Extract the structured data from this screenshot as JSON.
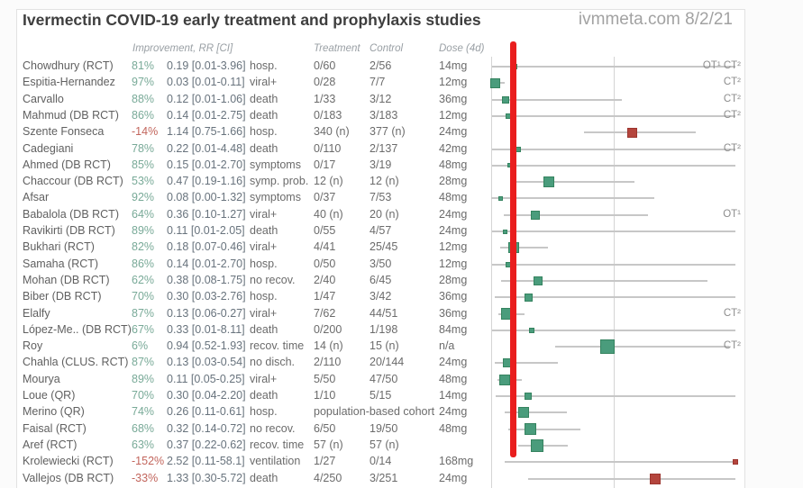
{
  "header": {
    "title": "Ivermectin COVID-19 early treatment and prophylaxis studies",
    "source": "ivmmeta.com 8/2/21"
  },
  "columns": {
    "improvement": "Improvement, RR [CI]",
    "treatment": "Treatment",
    "control": "Control",
    "dose": "Dose (4d)"
  },
  "accent_colors": {
    "positive_green": "#4a9c7c",
    "negative_red": "#b4453d",
    "red_marker_line": "#e91e1e",
    "ci_line_gray": "#c7c7c7"
  },
  "chart_data": {
    "type": "scatter",
    "subtype": "forest-plot",
    "x_axis": {
      "scale": "linear",
      "unit": "relative risk (RR)",
      "origin_rr": 0,
      "reference_line_rr": 1,
      "clip_max_rr": 1.98,
      "grid": "vertical lines at RR 0 and RR 1"
    },
    "legend_position": "none",
    "red_vertical_line": {
      "meaning": "overlaid marker line near pooled effect",
      "rr": 0.16
    },
    "rows": [
      {
        "name": "Chowdhury (RCT)",
        "improvement": "81%",
        "rr_ci": "0.19 [0.01-3.96]",
        "rr": 0.19,
        "ci": [
          0.01,
          3.96
        ],
        "outcome": "hosp.",
        "treatment": "0/60",
        "control": "2/56",
        "dose": "14mg",
        "color": "green",
        "weight": 6,
        "annotation": "OT¹ CT²"
      },
      {
        "name": "Espitia-Hernandez",
        "improvement": "97%",
        "rr_ci": "0.03 [0.01-0.11]",
        "rr": 0.03,
        "ci": [
          0.01,
          0.11
        ],
        "outcome": "viral+",
        "treatment": "0/28",
        "control": "7/7",
        "dose": "12mg",
        "color": "green",
        "weight": 11,
        "annotation": "CT²"
      },
      {
        "name": "Carvallo",
        "improvement": "88%",
        "rr_ci": "0.12 [0.01-1.06]",
        "rr": 0.12,
        "ci": [
          0.01,
          1.06
        ],
        "outcome": "death",
        "treatment": "1/33",
        "control": "3/12",
        "dose": "36mg",
        "color": "green",
        "weight": 8,
        "annotation": "CT²"
      },
      {
        "name": "Mahmud (DB RCT)",
        "improvement": "86%",
        "rr_ci": "0.14 [0.01-2.75]",
        "rr": 0.14,
        "ci": [
          0.01,
          2.75
        ],
        "outcome": "death",
        "treatment": "0/183",
        "control": "3/183",
        "dose": "12mg",
        "color": "green",
        "weight": 6,
        "annotation": "CT²"
      },
      {
        "name": "Szente Fonseca",
        "improvement": "-14%",
        "rr_ci": "1.14 [0.75-1.66]",
        "rr": 1.14,
        "ci": [
          0.75,
          1.66
        ],
        "outcome": "hosp.",
        "treatment": "340 (n)",
        "control": "377 (n)",
        "dose": "24mg",
        "color": "red",
        "weight": 11,
        "annotation": ""
      },
      {
        "name": "Cadegiani",
        "improvement": "78%",
        "rr_ci": "0.22 [0.01-4.48]",
        "rr": 0.22,
        "ci": [
          0.01,
          4.48
        ],
        "outcome": "death",
        "treatment": "0/110",
        "control": "2/137",
        "dose": "42mg",
        "color": "green",
        "weight": 6,
        "annotation": "CT²"
      },
      {
        "name": "Ahmed (DB RCT)",
        "improvement": "85%",
        "rr_ci": "0.15 [0.01-2.70]",
        "rr": 0.15,
        "ci": [
          0.01,
          2.7
        ],
        "outcome": "symptoms",
        "treatment": "0/17",
        "control": "3/19",
        "dose": "48mg",
        "color": "green",
        "weight": 5,
        "annotation": ""
      },
      {
        "name": "Chaccour (DB RCT)",
        "improvement": "53%",
        "rr_ci": "0.47 [0.19-1.16]",
        "rr": 0.47,
        "ci": [
          0.19,
          1.16
        ],
        "outcome": "symp. prob.",
        "treatment": "12 (n)",
        "control": "12 (n)",
        "dose": "28mg",
        "color": "green",
        "weight": 12,
        "annotation": ""
      },
      {
        "name": "Afsar",
        "improvement": "92%",
        "rr_ci": "0.08 [0.00-1.32]",
        "rr": 0.08,
        "ci": [
          0.0,
          1.32
        ],
        "outcome": "symptoms",
        "treatment": "0/37",
        "control": "7/53",
        "dose": "48mg",
        "color": "green",
        "weight": 5,
        "annotation": ""
      },
      {
        "name": "Babalola (DB RCT)",
        "improvement": "64%",
        "rr_ci": "0.36 [0.10-1.27]",
        "rr": 0.36,
        "ci": [
          0.1,
          1.27
        ],
        "outcome": "viral+",
        "treatment": "40 (n)",
        "control": "20 (n)",
        "dose": "24mg",
        "color": "green",
        "weight": 10,
        "annotation": "OT¹"
      },
      {
        "name": "Ravikirti (DB RCT)",
        "improvement": "89%",
        "rr_ci": "0.11 [0.01-2.05]",
        "rr": 0.11,
        "ci": [
          0.01,
          2.05
        ],
        "outcome": "death",
        "treatment": "0/55",
        "control": "4/57",
        "dose": "24mg",
        "color": "green",
        "weight": 5,
        "annotation": ""
      },
      {
        "name": "Bukhari (RCT)",
        "improvement": "82%",
        "rr_ci": "0.18 [0.07-0.46]",
        "rr": 0.18,
        "ci": [
          0.07,
          0.46
        ],
        "outcome": "viral+",
        "treatment": "4/41",
        "control": "25/45",
        "dose": "12mg",
        "color": "green",
        "weight": 12,
        "annotation": ""
      },
      {
        "name": "Samaha (RCT)",
        "improvement": "86%",
        "rr_ci": "0.14 [0.01-2.70]",
        "rr": 0.14,
        "ci": [
          0.01,
          2.7
        ],
        "outcome": "hosp.",
        "treatment": "0/50",
        "control": "3/50",
        "dose": "12mg",
        "color": "green",
        "weight": 6,
        "annotation": ""
      },
      {
        "name": "Mohan (DB RCT)",
        "improvement": "62%",
        "rr_ci": "0.38 [0.08-1.75]",
        "rr": 0.38,
        "ci": [
          0.08,
          1.75
        ],
        "outcome": "no recov.",
        "treatment": "2/40",
        "control": "6/45",
        "dose": "28mg",
        "color": "green",
        "weight": 10,
        "annotation": ""
      },
      {
        "name": "Biber (DB RCT)",
        "improvement": "70%",
        "rr_ci": "0.30 [0.03-2.76]",
        "rr": 0.3,
        "ci": [
          0.03,
          2.76
        ],
        "outcome": "hosp.",
        "treatment": "1/47",
        "control": "3/42",
        "dose": "36mg",
        "color": "green",
        "weight": 9,
        "annotation": ""
      },
      {
        "name": "Elalfy",
        "improvement": "87%",
        "rr_ci": "0.13 [0.06-0.27]",
        "rr": 0.13,
        "ci": [
          0.06,
          0.27
        ],
        "outcome": "viral+",
        "treatment": "7/62",
        "control": "44/51",
        "dose": "36mg",
        "color": "green",
        "weight": 13,
        "annotation": "CT²"
      },
      {
        "name": "López-Me.. (DB RCT)",
        "improvement": "67%",
        "rr_ci": "0.33 [0.01-8.11]",
        "rr": 0.33,
        "ci": [
          0.01,
          8.11
        ],
        "outcome": "death",
        "treatment": "0/200",
        "control": "1/198",
        "dose": "84mg",
        "color": "green",
        "weight": 6,
        "annotation": ""
      },
      {
        "name": "Roy",
        "improvement": "6%",
        "rr_ci": "0.94 [0.52-1.93]",
        "rr": 0.94,
        "ci": [
          0.52,
          1.93
        ],
        "outcome": "recov. time",
        "treatment": "14 (n)",
        "control": "15 (n)",
        "dose": "n/a",
        "color": "green",
        "weight": 16,
        "annotation": "CT²"
      },
      {
        "name": "Chahla (CLUS. RCT)",
        "improvement": "87%",
        "rr_ci": "0.13 [0.03-0.54]",
        "rr": 0.13,
        "ci": [
          0.03,
          0.54
        ],
        "outcome": "no disch.",
        "treatment": "2/110",
        "control": "20/144",
        "dose": "24mg",
        "color": "green",
        "weight": 10,
        "annotation": ""
      },
      {
        "name": "Mourya",
        "improvement": "89%",
        "rr_ci": "0.11 [0.05-0.25]",
        "rr": 0.11,
        "ci": [
          0.05,
          0.25
        ],
        "outcome": "viral+",
        "treatment": "5/50",
        "control": "47/50",
        "dose": "48mg",
        "color": "green",
        "weight": 12,
        "annotation": ""
      },
      {
        "name": "Loue (QR)",
        "improvement": "70%",
        "rr_ci": "0.30 [0.04-2.20]",
        "rr": 0.3,
        "ci": [
          0.04,
          2.2
        ],
        "outcome": "death",
        "treatment": "1/10",
        "control": "5/15",
        "dose": "14mg",
        "color": "green",
        "weight": 8,
        "annotation": ""
      },
      {
        "name": "Merino (QR)",
        "improvement": "74%",
        "rr_ci": "0.26 [0.11-0.61]",
        "rr": 0.26,
        "ci": [
          0.11,
          0.61
        ],
        "outcome": "hosp.",
        "treatment": "population-based cohort",
        "control": "",
        "dose": "24mg",
        "color": "green",
        "weight": 12,
        "annotation": ""
      },
      {
        "name": "Faisal (RCT)",
        "improvement": "68%",
        "rr_ci": "0.32 [0.14-0.72]",
        "rr": 0.32,
        "ci": [
          0.14,
          0.72
        ],
        "outcome": "no recov.",
        "treatment": "6/50",
        "control": "19/50",
        "dose": "48mg",
        "color": "green",
        "weight": 13,
        "annotation": ""
      },
      {
        "name": "Aref (RCT)",
        "improvement": "63%",
        "rr_ci": "0.37 [0.22-0.62]",
        "rr": 0.37,
        "ci": [
          0.22,
          0.62
        ],
        "outcome": "recov. time",
        "treatment": "57 (n)",
        "control": "57 (n)",
        "dose": "",
        "color": "green",
        "weight": 14,
        "annotation": ""
      },
      {
        "name": "Krolewiecki (RCT)",
        "improvement": "-152%",
        "rr_ci": "2.52 [0.11-58.1]",
        "rr": 2.52,
        "ci": [
          0.11,
          58.1
        ],
        "outcome": "ventilation",
        "treatment": "1/27",
        "control": "0/14",
        "dose": "168mg",
        "color": "red",
        "weight": 6,
        "annotation": ""
      },
      {
        "name": "Vallejos (DB RCT)",
        "improvement": "-33%",
        "rr_ci": "1.33 [0.30-5.72]",
        "rr": 1.33,
        "ci": [
          0.3,
          5.72
        ],
        "outcome": "death",
        "treatment": "4/250",
        "control": "3/251",
        "dose": "24mg",
        "color": "red",
        "weight": 12,
        "annotation": ""
      }
    ]
  }
}
